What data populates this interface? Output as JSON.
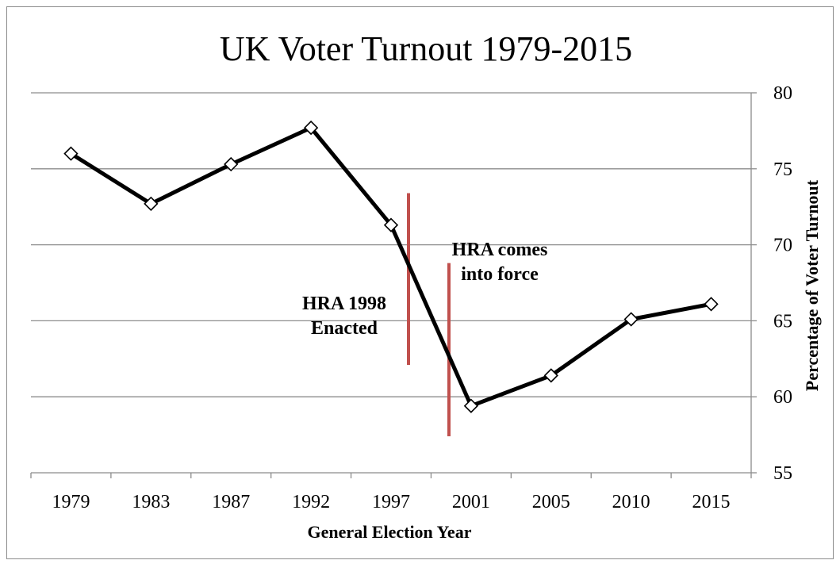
{
  "chart_data": {
    "type": "line",
    "title": "UK Voter Turnout 1979-2015",
    "xlabel": "General Election Year",
    "ylabel": "Percentage of Voter Turnout",
    "categories": [
      "1979",
      "1983",
      "1987",
      "1992",
      "1997",
      "2001",
      "2005",
      "2010",
      "2015"
    ],
    "series": [
      {
        "values": [
          76.0,
          72.7,
          75.3,
          77.7,
          71.3,
          59.4,
          61.4,
          65.1,
          66.1
        ]
      }
    ],
    "ylim": [
      55,
      80
    ],
    "yticks": [
      "55",
      "60",
      "65",
      "70",
      "75",
      "80"
    ],
    "y_axis_side": "right",
    "grid": true,
    "line_color": "#000000",
    "marker": "diamond",
    "annotations": [
      {
        "text_lines": [
          "HRA 1998",
          "Enacted"
        ],
        "color": "#c0504d"
      },
      {
        "text_lines": [
          "HRA comes",
          "into force"
        ],
        "color": "#c0504d"
      }
    ]
  }
}
